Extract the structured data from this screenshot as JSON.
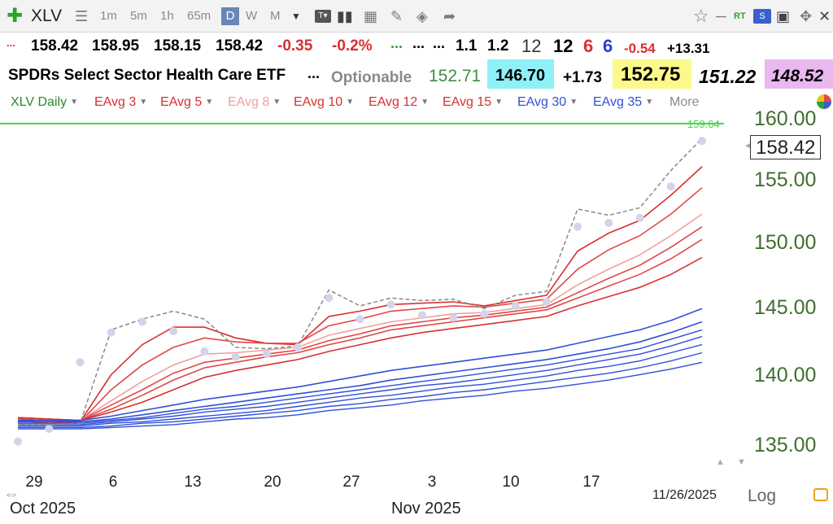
{
  "toolbar": {
    "symbol": "XLV",
    "periods": [
      "1m",
      "5m",
      "1h",
      "65m",
      "D",
      "W",
      "M"
    ],
    "active_period": "D",
    "badge_rt": "RT",
    "badge_s": "S"
  },
  "quote_row1": {
    "open": "158.42",
    "high": "158.95",
    "low": "158.15",
    "close": "158.42",
    "change": "-0.35",
    "change_pct": "-0.2%",
    "dots_green": "...",
    "dots_a": "...",
    "dots_b": "...",
    "v1": "1.1",
    "v2": "1.2",
    "v3": "12",
    "v4": "12",
    "v5": "6",
    "v6": "6",
    "v7": "-0.54",
    "v8": "+13.31",
    "dots_red": "..."
  },
  "quote_row2": {
    "name": "SPDRs Select Sector Health Care ETF",
    "dots": "...",
    "optionable": "Optionable",
    "v1": "152.71",
    "v2": "146.70",
    "v3": "+1.73",
    "v4": "152.75",
    "v5": "151.22",
    "v6": "148.52"
  },
  "legend": {
    "items": [
      "XLV Daily",
      "EAvg 3",
      "EAvg 5",
      "EAvg 8",
      "EAvg 10",
      "EAvg 12",
      "EAvg 15",
      "EAvg 30",
      "EAvg 35",
      "More"
    ]
  },
  "chart_data": {
    "type": "line",
    "scale": "log",
    "price_line_label": "159.64",
    "last_price_label": "158.42",
    "yticks": [
      "160.00",
      "155.00",
      "150.00",
      "145.00",
      "140.00",
      "135.00"
    ],
    "ylim": [
      133.5,
      161.5
    ],
    "xticks": [
      "29",
      "6",
      "13",
      "20",
      "27",
      "3",
      "10",
      "17"
    ],
    "months": [
      "Oct 2025",
      "Nov 2025"
    ],
    "date_label": "11/26/2025",
    "log_label": "Log",
    "x": [
      "2025-10-27",
      "2025-10-28",
      "2025-10-29",
      "2025-10-30",
      "2025-10-31",
      "2025-11-03",
      "2025-11-04",
      "2025-11-05",
      "2025-11-06",
      "2025-11-07",
      "2025-11-10",
      "2025-11-11",
      "2025-11-12",
      "2025-11-13",
      "2025-11-14",
      "2025-11-17",
      "2025-11-18",
      "2025-11-19",
      "2025-11-20",
      "2025-11-21",
      "2025-11-24",
      "2025-11-25",
      "2025-11-26"
    ],
    "close_series": [
      136.5,
      136.5,
      136.6,
      143.4,
      144.2,
      144.8,
      144.2,
      142.1,
      142.0,
      142.2,
      146.4,
      145.2,
      145.8,
      145.6,
      145.7,
      145.0,
      146.0,
      146.3,
      152.7,
      152.2,
      152.8,
      155.8,
      158.42
    ],
    "dots_series": [
      135.3,
      136.2,
      141.0,
      143.2,
      144.0,
      143.3,
      141.8,
      141.4,
      141.6,
      142.1,
      145.8,
      144.2,
      145.3,
      144.5,
      144.3,
      144.6,
      145.2,
      145.5,
      151.3,
      151.6,
      152.0,
      154.5,
      158.2
    ],
    "series": [
      {
        "name": "EAvg 3",
        "color": "#d83030",
        "values": [
          136.8,
          136.6,
          136.7,
          140.1,
          142.3,
          143.6,
          143.6,
          142.8,
          142.4,
          142.3,
          144.4,
          144.8,
          145.3,
          145.4,
          145.5,
          145.2,
          145.6,
          146.0,
          149.4,
          150.8,
          151.8,
          153.8,
          156.1
        ]
      },
      {
        "name": "EAvg 5",
        "color": "#e04848",
        "values": [
          136.9,
          136.8,
          136.7,
          139.0,
          140.8,
          142.1,
          142.8,
          142.5,
          142.4,
          142.4,
          143.7,
          144.2,
          144.8,
          145.0,
          145.2,
          145.1,
          145.4,
          145.7,
          148.0,
          149.5,
          150.6,
          152.3,
          154.4
        ]
      },
      {
        "name": "EAvg 8",
        "color": "#f0a0a0",
        "values": [
          137.0,
          136.9,
          136.8,
          138.2,
          139.6,
          140.8,
          141.6,
          141.7,
          141.9,
          142.1,
          143.0,
          143.5,
          144.0,
          144.3,
          144.6,
          144.7,
          145.0,
          145.3,
          146.8,
          148.0,
          149.1,
          150.6,
          152.3
        ]
      },
      {
        "name": "EAvg 10",
        "color": "#e04848",
        "values": [
          137.0,
          136.9,
          136.8,
          137.9,
          139.0,
          140.2,
          141.0,
          141.3,
          141.6,
          141.9,
          142.6,
          143.1,
          143.7,
          144.0,
          144.3,
          144.5,
          144.8,
          145.1,
          146.2,
          147.3,
          148.3,
          149.7,
          151.3
        ]
      },
      {
        "name": "EAvg 12",
        "color": "#e04848",
        "values": [
          137.0,
          136.9,
          136.8,
          137.6,
          138.6,
          139.7,
          140.6,
          141.0,
          141.4,
          141.7,
          142.3,
          142.8,
          143.4,
          143.7,
          144.0,
          144.3,
          144.6,
          144.9,
          145.8,
          146.7,
          147.6,
          148.8,
          150.3
        ]
      },
      {
        "name": "EAvg 15",
        "color": "#d83030",
        "values": [
          137.0,
          136.9,
          136.8,
          137.4,
          138.1,
          139.0,
          139.9,
          140.4,
          140.8,
          141.2,
          141.8,
          142.3,
          142.8,
          143.2,
          143.5,
          143.8,
          144.1,
          144.4,
          145.2,
          145.9,
          146.6,
          147.6,
          148.9
        ]
      },
      {
        "name": "EAvg 30",
        "color": "#3050d8",
        "values": [
          136.8,
          136.8,
          136.8,
          137.1,
          137.5,
          137.9,
          138.3,
          138.6,
          138.9,
          139.2,
          139.6,
          140.0,
          140.4,
          140.7,
          141.0,
          141.3,
          141.6,
          141.9,
          142.4,
          142.9,
          143.4,
          144.1,
          145.0
        ]
      },
      {
        "name": "EAvg 35",
        "color": "#3050d8",
        "values": [
          136.7,
          136.7,
          136.7,
          136.9,
          137.2,
          137.5,
          137.8,
          138.1,
          138.4,
          138.7,
          139.0,
          139.3,
          139.7,
          140.0,
          140.3,
          140.6,
          140.9,
          141.2,
          141.6,
          142.0,
          142.5,
          143.2,
          144.0
        ]
      }
    ],
    "extra_blue_lines": [
      [
        136.6,
        136.6,
        136.6,
        136.8,
        137.0,
        137.3,
        137.6,
        137.8,
        138.1,
        138.4,
        138.7,
        139.0,
        139.3,
        139.6,
        139.9,
        140.2,
        140.5,
        140.8,
        141.2,
        141.6,
        142.0,
        142.7,
        143.4
      ],
      [
        136.5,
        136.5,
        136.5,
        136.7,
        136.9,
        137.1,
        137.4,
        137.6,
        137.8,
        138.1,
        138.4,
        138.7,
        139.0,
        139.3,
        139.5,
        139.8,
        140.1,
        140.4,
        140.8,
        141.2,
        141.6,
        142.2,
        142.9
      ],
      [
        136.4,
        136.4,
        136.4,
        136.6,
        136.7,
        136.9,
        137.1,
        137.3,
        137.5,
        137.8,
        138.1,
        138.4,
        138.6,
        138.9,
        139.2,
        139.4,
        139.7,
        140.0,
        140.4,
        140.7,
        141.1,
        141.7,
        142.3
      ],
      [
        136.3,
        136.3,
        136.3,
        136.4,
        136.6,
        136.7,
        136.9,
        137.1,
        137.3,
        137.5,
        137.8,
        138.0,
        138.3,
        138.5,
        138.8,
        139.0,
        139.3,
        139.6,
        139.9,
        140.2,
        140.6,
        141.1,
        141.7
      ],
      [
        136.2,
        136.2,
        136.2,
        136.3,
        136.4,
        136.5,
        136.7,
        136.9,
        137.0,
        137.2,
        137.5,
        137.7,
        137.9,
        138.2,
        138.4,
        138.6,
        138.9,
        139.1,
        139.4,
        139.7,
        140.1,
        140.5,
        141.0
      ]
    ],
    "colors": {
      "green_line": "#4cd04c",
      "axis_text": "#3f6e2f",
      "dots": "#d5d3ea",
      "close_dash": "#888888"
    }
  }
}
